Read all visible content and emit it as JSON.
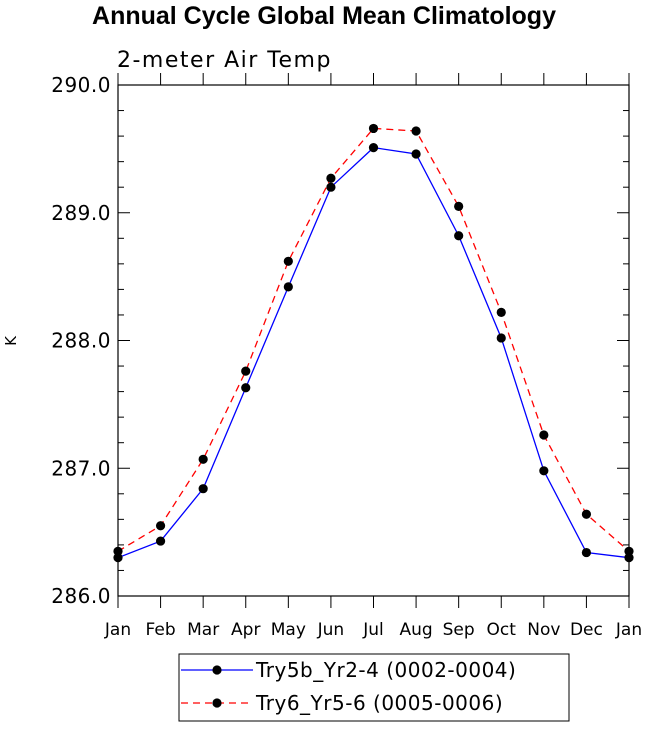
{
  "title": "Annual Cycle Global Mean Climatology",
  "chart_data": {
    "type": "line",
    "title": "Annual Cycle Global Mean Climatology",
    "subtitle": "2-meter Air Temp",
    "xlabel": "",
    "ylabel": "K",
    "categories": [
      "Jan",
      "Feb",
      "Mar",
      "Apr",
      "May",
      "Jun",
      "Jul",
      "Aug",
      "Sep",
      "Oct",
      "Nov",
      "Dec",
      "Jan"
    ],
    "ylim": [
      286.0,
      290.0
    ],
    "yticks": [
      286.0,
      287.0,
      288.0,
      289.0,
      290.0
    ],
    "ytick_labels": [
      "286.0",
      "287.0",
      "288.0",
      "289.0",
      "290.0"
    ],
    "grid": false,
    "legend_position": "bottom-center",
    "series": [
      {
        "name": "Try5b_Yr2-4 (0002-0004)",
        "color": "#0000ff",
        "line_style": "solid",
        "marker": "filled-circle",
        "values": [
          286.3,
          286.43,
          286.84,
          287.63,
          288.42,
          289.2,
          289.51,
          289.46,
          288.82,
          288.02,
          286.98,
          286.34,
          286.3
        ]
      },
      {
        "name": "Try6_Yr5-6 (0005-0006)",
        "color": "#ff0000",
        "line_style": "dashed",
        "marker": "filled-circle",
        "values": [
          286.35,
          286.55,
          287.07,
          287.76,
          288.62,
          289.27,
          289.66,
          289.64,
          289.05,
          288.22,
          287.26,
          286.64,
          286.35
        ]
      }
    ]
  }
}
